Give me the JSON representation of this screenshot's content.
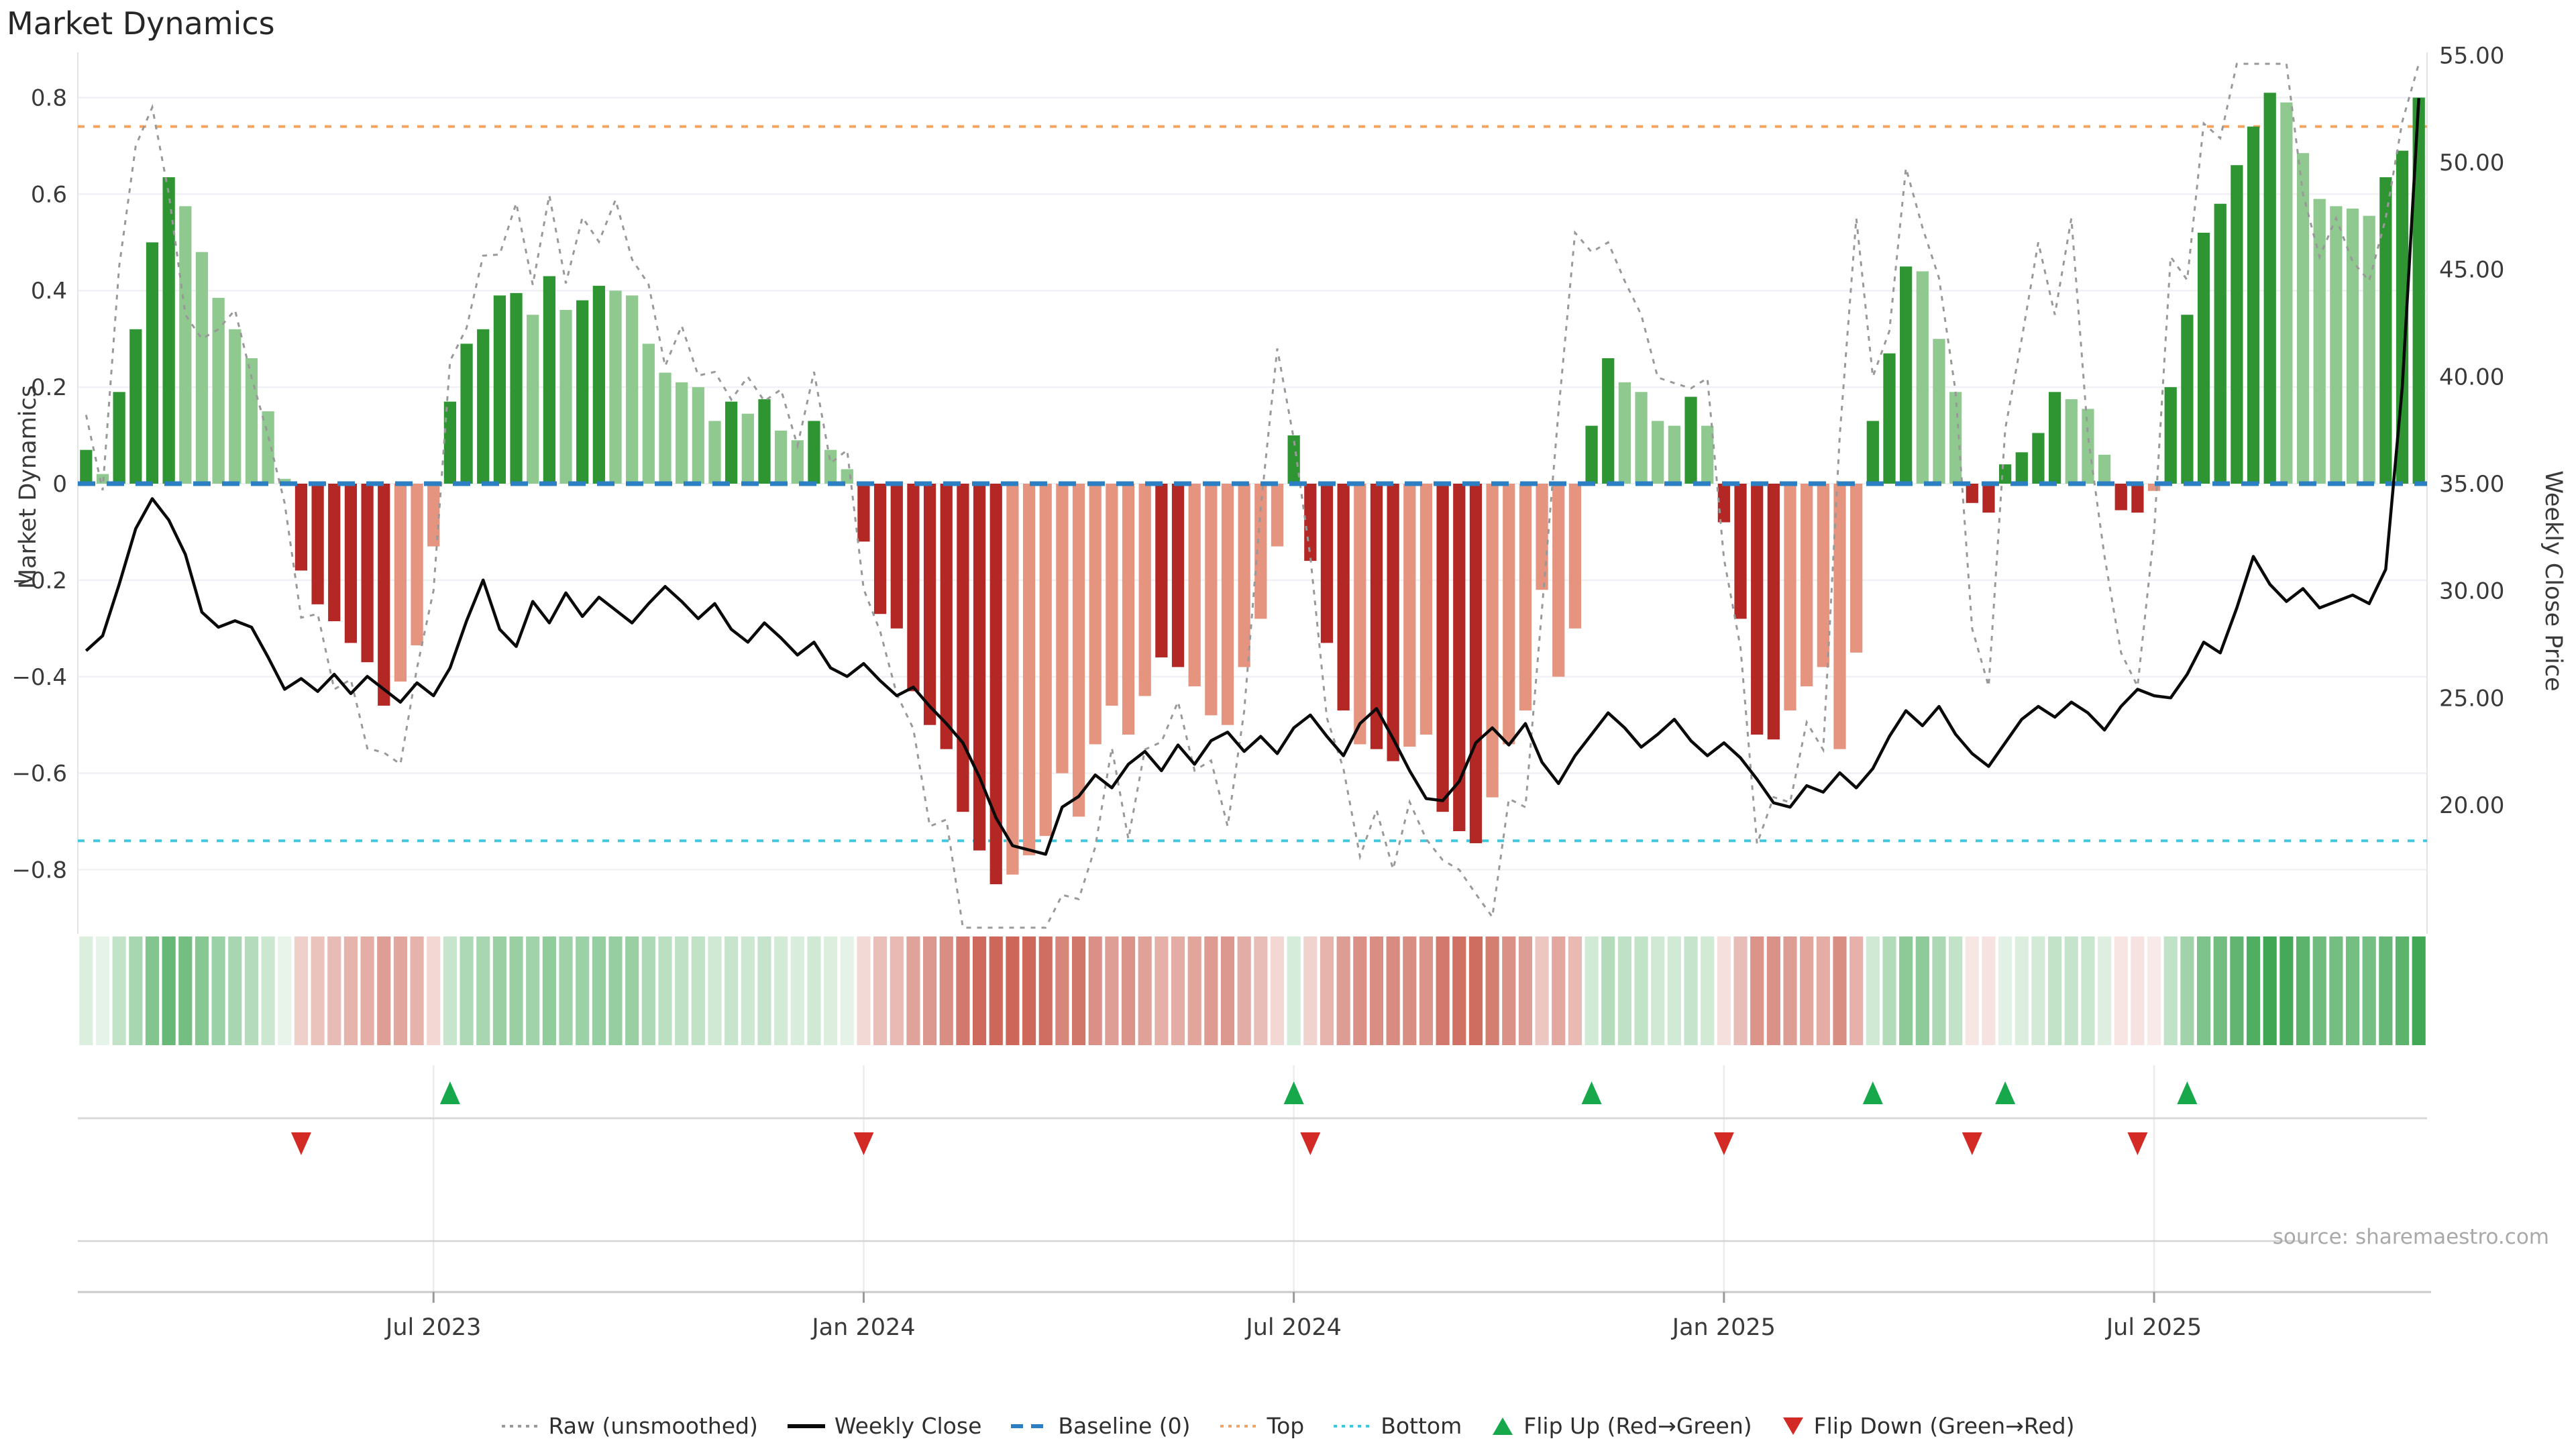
{
  "title": "Market Dynamics",
  "source_note": "source: sharemaestro.com",
  "axes": {
    "left_label": "Market Dynamics",
    "right_label": "Weekly Close Price",
    "left_ticks": [
      {
        "label": "0.8",
        "value": 0.8
      },
      {
        "label": "0.6",
        "value": 0.6
      },
      {
        "label": "0.4",
        "value": 0.4
      },
      {
        "label": "0.2",
        "value": 0.2
      },
      {
        "label": "0",
        "value": 0
      },
      {
        "label": "−0.2",
        "value": -0.2
      },
      {
        "label": "−0.4",
        "value": -0.4
      },
      {
        "label": "−0.6",
        "value": -0.6
      },
      {
        "label": "−0.8",
        "value": -0.8
      }
    ],
    "right_ticks": [
      {
        "label": "55.00",
        "value": 55
      },
      {
        "label": "50.00",
        "value": 50
      },
      {
        "label": "45.00",
        "value": 45
      },
      {
        "label": "40.00",
        "value": 40
      },
      {
        "label": "35.00",
        "value": 35
      },
      {
        "label": "30.00",
        "value": 30
      },
      {
        "label": "25.00",
        "value": 25
      },
      {
        "label": "20.00",
        "value": 20
      }
    ],
    "x_ticks": [
      {
        "label": "Jul 2023",
        "index": 21
      },
      {
        "label": "Jan 2024",
        "index": 47
      },
      {
        "label": "Jul 2024",
        "index": 73
      },
      {
        "label": "Jan 2025",
        "index": 99
      },
      {
        "label": "Jul 2025",
        "index": 125
      }
    ]
  },
  "legend": [
    {
      "label": "Raw (unsmoothed)",
      "swatch": "dotted-line",
      "color": "#999999"
    },
    {
      "label": "Weekly Close",
      "swatch": "solid-line",
      "color": "#0a0a0a"
    },
    {
      "label": "Baseline (0)",
      "swatch": "dashed-line",
      "color": "#2b7fc2"
    },
    {
      "label": "Top",
      "swatch": "dotted-line",
      "color": "#f5a45f"
    },
    {
      "label": "Bottom",
      "swatch": "dotted-line",
      "color": "#41c7dd"
    },
    {
      "label": "Flip Up (Red→Green)",
      "swatch": "triangle-up",
      "color": "#17a84b"
    },
    {
      "label": "Flip Down (Green→Red)",
      "swatch": "triangle-down",
      "color": "#d42a26"
    }
  ],
  "colors": {
    "bar_dark_green": "#2e9532",
    "bar_light_green": "#8fc98f",
    "bar_dark_red": "#b32724",
    "bar_salmon": "#e5947f",
    "baseline_blue": "#2b7fc2",
    "top_orange": "#f5a45f",
    "bottom_cyan": "#41c7dd",
    "raw_gray": "#999999",
    "close_black": "#0a0a0a",
    "grid": "#f0f1f4",
    "spine": "#e3e3e8",
    "flip_up": "#17a84b",
    "flip_down": "#d42a26",
    "heat_green_rgb": "47,158,68",
    "heat_red_rgb": "197,82,66",
    "tick_text": "#3a3a3a",
    "panel_line": "#d8d8d8",
    "axis_line": "#c9c9c9"
  },
  "chart_data": {
    "type": "bar",
    "x_unit": "week",
    "title": "Market Dynamics",
    "ylabel_left": "Market Dynamics",
    "ylabel_right": "Weekly Close Price",
    "ylim_left": [
      -0.92,
      0.89
    ],
    "ylim_right_ticks": [
      20,
      55
    ],
    "baseline": 0,
    "top_threshold": 0.74,
    "bottom_threshold": -0.74,
    "grid": "horizontal-faint",
    "legend_position": "bottom-center",
    "dynamics_values": [
      0.07,
      0.02,
      0.19,
      0.32,
      0.5,
      0.635,
      0.575,
      0.48,
      0.385,
      0.32,
      0.26,
      0.15,
      0.01,
      -0.18,
      -0.25,
      -0.285,
      -0.33,
      -0.37,
      -0.46,
      -0.41,
      -0.335,
      -0.13,
      0.17,
      0.29,
      0.32,
      0.39,
      0.395,
      0.35,
      0.43,
      0.36,
      0.38,
      0.41,
      0.4,
      0.39,
      0.29,
      0.23,
      0.21,
      0.2,
      0.13,
      0.17,
      0.145,
      0.175,
      0.11,
      0.09,
      0.13,
      0.07,
      0.03,
      -0.12,
      -0.27,
      -0.3,
      -0.43,
      -0.5,
      -0.55,
      -0.68,
      -0.76,
      -0.83,
      -0.81,
      -0.77,
      -0.73,
      -0.6,
      -0.69,
      -0.54,
      -0.46,
      -0.52,
      -0.44,
      -0.36,
      -0.38,
      -0.42,
      -0.48,
      -0.5,
      -0.38,
      -0.28,
      -0.13,
      0.1,
      -0.16,
      -0.33,
      -0.47,
      -0.54,
      -0.55,
      -0.575,
      -0.545,
      -0.52,
      -0.68,
      -0.72,
      -0.745,
      -0.65,
      -0.54,
      -0.47,
      -0.22,
      -0.4,
      -0.3,
      0.12,
      0.26,
      0.21,
      0.19,
      0.13,
      0.12,
      0.18,
      0.12,
      -0.08,
      -0.28,
      -0.52,
      -0.53,
      -0.47,
      -0.42,
      -0.38,
      -0.55,
      -0.35,
      0.13,
      0.27,
      0.45,
      0.44,
      0.3,
      0.19,
      -0.04,
      -0.06,
      0.04,
      0.065,
      0.105,
      0.19,
      0.175,
      0.155,
      0.06,
      -0.055,
      -0.06,
      -0.015,
      0.2,
      0.35,
      0.52,
      0.58,
      0.66,
      0.74,
      0.81,
      0.79,
      0.685,
      0.59,
      0.575,
      0.57,
      0.555,
      0.635,
      0.69,
      0.8
    ],
    "bar_shades": "dgddddggggggg rrrrrrsss dddddgdgddggggggg dgdggdgg rrrrrrrrrsssss ssssrrssssss d rrrsrrssrrrsssss s ddggggdg rrrrsssss dddggg rr ddddggg rrs dddddddggggggddd",
    "weekly_close": [
      27.2,
      27.9,
      30.3,
      32.9,
      34.3,
      33.3,
      31.7,
      29.0,
      28.3,
      28.6,
      28.3,
      26.9,
      25.4,
      25.9,
      25.3,
      26.1,
      25.2,
      26.0,
      25.4,
      24.8,
      25.7,
      25.1,
      26.4,
      28.6,
      30.5,
      28.2,
      27.4,
      29.5,
      28.5,
      29.9,
      28.8,
      29.7,
      29.1,
      28.5,
      29.4,
      30.2,
      29.5,
      28.7,
      29.4,
      28.2,
      27.6,
      28.5,
      27.8,
      27.0,
      27.6,
      26.4,
      26.0,
      26.6,
      25.8,
      25.1,
      25.5,
      24.6,
      23.8,
      22.9,
      21.3,
      19.4,
      18.1,
      17.9,
      17.7,
      19.9,
      20.4,
      21.4,
      20.8,
      21.9,
      22.5,
      21.6,
      22.8,
      21.9,
      23.0,
      23.4,
      22.5,
      23.2,
      22.4,
      23.6,
      24.2,
      23.2,
      22.3,
      23.8,
      24.5,
      23.1,
      21.6,
      20.3,
      20.2,
      21.1,
      22.9,
      23.6,
      22.8,
      23.8,
      22.0,
      21.0,
      22.3,
      23.3,
      24.3,
      23.6,
      22.7,
      23.3,
      24.0,
      23.0,
      22.3,
      22.9,
      22.2,
      21.2,
      20.1,
      19.9,
      20.9,
      20.6,
      21.5,
      20.8,
      21.7,
      23.2,
      24.4,
      23.7,
      24.6,
      23.3,
      22.4,
      21.8,
      22.9,
      24.0,
      24.6,
      24.1,
      24.8,
      24.3,
      23.5,
      24.6,
      25.4,
      25.1,
      25.0,
      26.1,
      27.6,
      27.1,
      29.2,
      31.6,
      30.3,
      29.5,
      30.1,
      29.2,
      29.5,
      29.8,
      29.4,
      31.0,
      39.5,
      53.0
    ],
    "raw_rule": {
      "mult": 1.32,
      "jitter": [
        0.05,
        -0.04,
        0.06,
        -0.05,
        0.03,
        -0.06
      ],
      "clamp": [
        -0.92,
        0.87
      ]
    },
    "raw_overrides": {
      "2": 0.45,
      "3": 0.7,
      "4": 0.78,
      "5": 0.6,
      "6": 0.35,
      "7": 0.3,
      "8": 0.32,
      "9": 0.36,
      "10": 0.22,
      "11": 0.1,
      "12": -0.04,
      "71": -0.05,
      "72": 0.28,
      "82": -0.78,
      "83": -0.8,
      "84": -0.85,
      "89": 0.15,
      "90": 0.52,
      "91": 0.48,
      "92": 0.5,
      "93": 0.42,
      "94": 0.35,
      "95": 0.22,
      "106": 0.1,
      "107": 0.55,
      "114": -0.3,
      "115": -0.42,
      "117": 0.3,
      "118": 0.5,
      "119": 0.35,
      "120": 0.55,
      "121": 0.1,
      "122": -0.15,
      "123": -0.35,
      "124": -0.42,
      "125": -0.1,
      "126": 0.47,
      "134": 0.6,
      "135": 0.47,
      "136": 0.55,
      "137": 0.46,
      "138": 0.42,
      "139": 0.55,
      "140": 0.75,
      "141": 0.88
    },
    "flip_up_indices": [
      22,
      73,
      91,
      108,
      116,
      127
    ],
    "flip_down_indices": [
      13,
      47,
      74,
      99,
      114,
      124
    ]
  }
}
